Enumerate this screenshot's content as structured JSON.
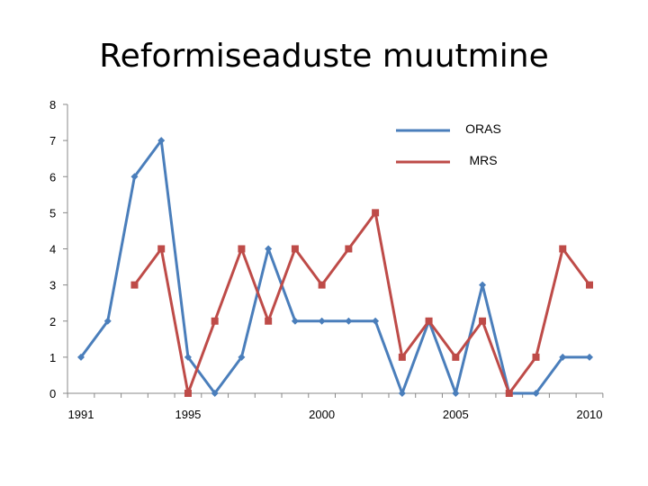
{
  "chart_data": {
    "type": "line",
    "title": "Reformiseaduste muutmine",
    "xlabel": "",
    "ylabel": "",
    "x": [
      1991,
      1992,
      1993,
      1994,
      1995,
      1996,
      1997,
      1998,
      1999,
      2000,
      2001,
      2002,
      2003,
      2004,
      2005,
      2006,
      2007,
      2008,
      2009,
      2010
    ],
    "x_tick_labels": [
      "1991",
      "1995",
      "2000",
      "2005",
      "2010"
    ],
    "x_ticks": [
      1991,
      1995,
      2000,
      2005,
      2010
    ],
    "xlim": [
      1991,
      2010
    ],
    "ylim": [
      0,
      8
    ],
    "y_ticks": [
      0,
      1,
      2,
      3,
      4,
      5,
      6,
      7,
      8
    ],
    "grid": false,
    "legend_position": "top-right",
    "series": [
      {
        "name": "ORAS",
        "color": "#4a7ebb",
        "marker": "diamond",
        "values": [
          1,
          2,
          6,
          7,
          1,
          0,
          1,
          4,
          2,
          2,
          2,
          2,
          0,
          2,
          0,
          3,
          0,
          0,
          1,
          1
        ]
      },
      {
        "name": "MRS",
        "color": "#be4b48",
        "marker": "square",
        "values": [
          null,
          null,
          3,
          4,
          0,
          2,
          4,
          2,
          4,
          3,
          4,
          5,
          1,
          2,
          1,
          2,
          0,
          1,
          4,
          3
        ]
      }
    ]
  }
}
